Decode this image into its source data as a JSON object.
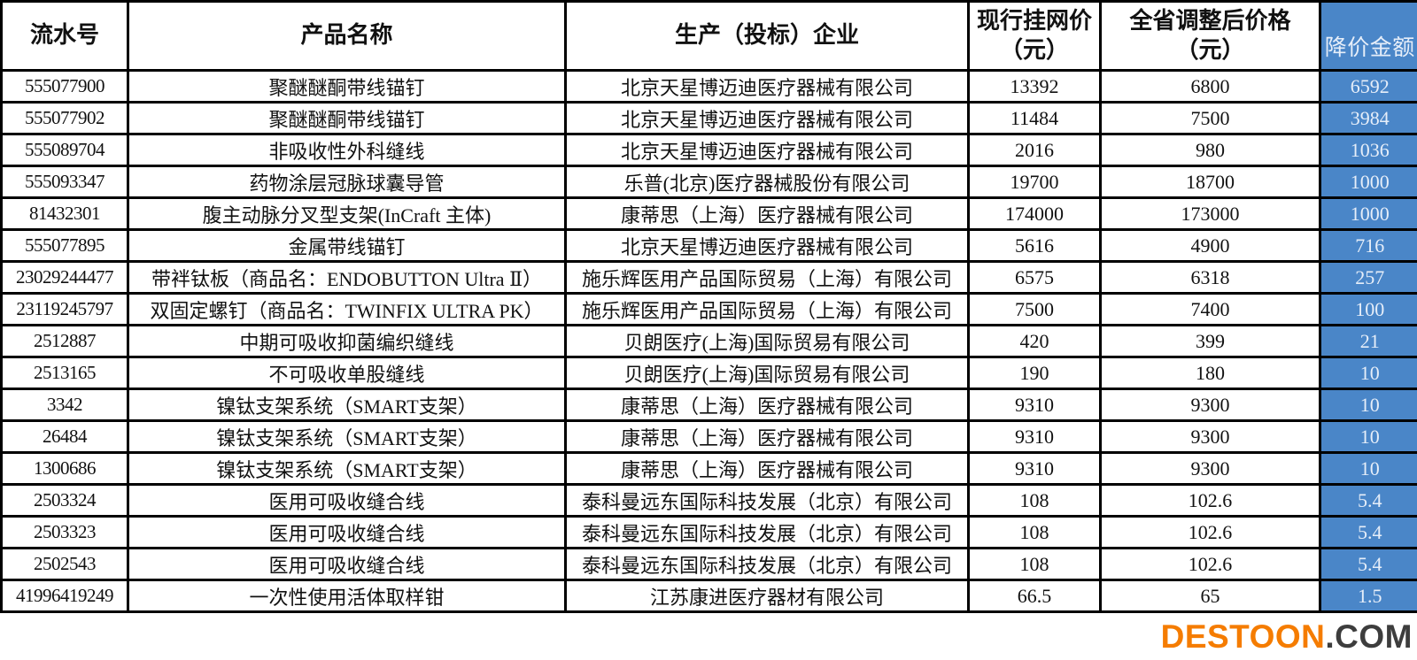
{
  "page": {
    "background": "#ffffff"
  },
  "watermark": {
    "brand": "DESTOON",
    "suffix": ".COM",
    "brand_color": "#f57c00",
    "suffix_color": "#3d3d3d"
  },
  "table": {
    "accent_blue": "#4a86c8",
    "blue_text_color": "#e6eef9",
    "border_color": "#000000",
    "columns": [
      {
        "key": "serial",
        "label": "流水号"
      },
      {
        "key": "product",
        "label": "产品名称"
      },
      {
        "key": "company",
        "label": "生产（投标）企业"
      },
      {
        "key": "current",
        "label": "现行挂网价\n（元）"
      },
      {
        "key": "adjusted",
        "label": "全省调整后价格\n（元）"
      },
      {
        "key": "reduction",
        "label": "降价金额"
      }
    ],
    "rows": [
      {
        "serial": "555077900",
        "product": "聚醚醚酮带线锚钉",
        "company": "北京天星博迈迪医疗器械有限公司",
        "current": "13392",
        "adjusted": "6800",
        "reduction": "6592"
      },
      {
        "serial": "555077902",
        "product": "聚醚醚酮带线锚钉",
        "company": "北京天星博迈迪医疗器械有限公司",
        "current": "11484",
        "adjusted": "7500",
        "reduction": "3984"
      },
      {
        "serial": "555089704",
        "product": "非吸收性外科缝线",
        "company": "北京天星博迈迪医疗器械有限公司",
        "current": "2016",
        "adjusted": "980",
        "reduction": "1036"
      },
      {
        "serial": "555093347",
        "product": "药物涂层冠脉球囊导管",
        "company": "乐普(北京)医疗器械股份有限公司",
        "current": "19700",
        "adjusted": "18700",
        "reduction": "1000"
      },
      {
        "serial": "81432301",
        "product": "腹主动脉分叉型支架(InCraft 主体)",
        "company": "康蒂思（上海）医疗器械有限公司",
        "current": "174000",
        "adjusted": "173000",
        "reduction": "1000"
      },
      {
        "serial": "555077895",
        "product": "金属带线锚钉",
        "company": "北京天星博迈迪医疗器械有限公司",
        "current": "5616",
        "adjusted": "4900",
        "reduction": "716"
      },
      {
        "serial": "23029244477",
        "product": "带袢钛板（商品名：ENDOBUTTON Ultra Ⅱ）",
        "company": "施乐辉医用产品国际贸易（上海）有限公司",
        "current": "6575",
        "adjusted": "6318",
        "reduction": "257"
      },
      {
        "serial": "23119245797",
        "product": "双固定螺钉（商品名：TWINFIX ULTRA PK）",
        "company": "施乐辉医用产品国际贸易（上海）有限公司",
        "current": "7500",
        "adjusted": "7400",
        "reduction": "100"
      },
      {
        "serial": "2512887",
        "product": "中期可吸收抑菌编织缝线",
        "company": "贝朗医疗(上海)国际贸易有限公司",
        "current": "420",
        "adjusted": "399",
        "reduction": "21"
      },
      {
        "serial": "2513165",
        "product": "不可吸收单股缝线",
        "company": "贝朗医疗(上海)国际贸易有限公司",
        "current": "190",
        "adjusted": "180",
        "reduction": "10"
      },
      {
        "serial": "3342",
        "product": "镍钛支架系统（SMART支架）",
        "company": "康蒂思（上海）医疗器械有限公司",
        "current": "9310",
        "adjusted": "9300",
        "reduction": "10"
      },
      {
        "serial": "26484",
        "product": "镍钛支架系统（SMART支架）",
        "company": "康蒂思（上海）医疗器械有限公司",
        "current": "9310",
        "adjusted": "9300",
        "reduction": "10"
      },
      {
        "serial": "1300686",
        "product": "镍钛支架系统（SMART支架）",
        "company": "康蒂思（上海）医疗器械有限公司",
        "current": "9310",
        "adjusted": "9300",
        "reduction": "10"
      },
      {
        "serial": "2503324",
        "product": "医用可吸收缝合线",
        "company": "泰科曼远东国际科技发展（北京）有限公司",
        "current": "108",
        "adjusted": "102.6",
        "reduction": "5.4"
      },
      {
        "serial": "2503323",
        "product": "医用可吸收缝合线",
        "company": "泰科曼远东国际科技发展（北京）有限公司",
        "current": "108",
        "adjusted": "102.6",
        "reduction": "5.4"
      },
      {
        "serial": "2502543",
        "product": "医用可吸收缝合线",
        "company": "泰科曼远东国际科技发展（北京）有限公司",
        "current": "108",
        "adjusted": "102.6",
        "reduction": "5.4"
      },
      {
        "serial": "41996419249",
        "product": "一次性使用活体取样钳",
        "company": "江苏康进医疗器材有限公司",
        "current": "66.5",
        "adjusted": "65",
        "reduction": "1.5"
      }
    ]
  }
}
